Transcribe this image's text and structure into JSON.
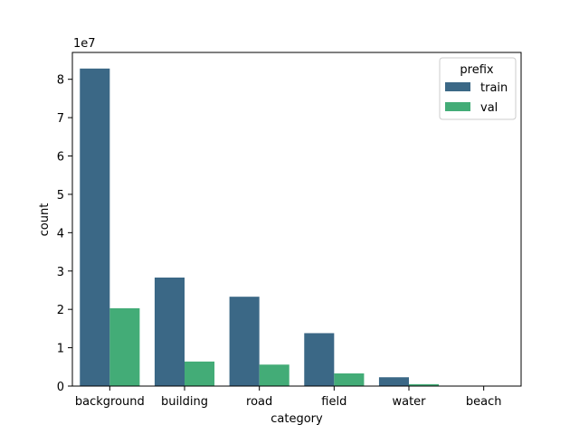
{
  "chart_data": {
    "type": "bar",
    "xlabel": "category",
    "ylabel": "count",
    "y_offset_label": "1e7",
    "categories": [
      "background",
      "building",
      "road",
      "field",
      "water",
      "beach"
    ],
    "series": [
      {
        "name": "train",
        "color": "#3b6886",
        "values": [
          8.28,
          2.83,
          2.33,
          1.38,
          0.23,
          0.002
        ]
      },
      {
        "name": "val",
        "color": "#43ac77",
        "values": [
          2.03,
          0.64,
          0.56,
          0.33,
          0.05,
          0.001
        ]
      }
    ],
    "ylim": [
      0,
      8.7
    ],
    "yticks": [
      0,
      1,
      2,
      3,
      4,
      5,
      6,
      7,
      8
    ],
    "legend": {
      "title": "prefix",
      "placement": "top-right"
    },
    "grid": false
  }
}
